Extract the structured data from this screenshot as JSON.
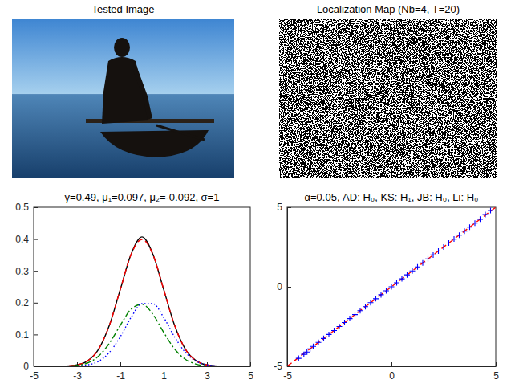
{
  "chart_data": [
    {
      "type": "image",
      "title": "Tested Image"
    },
    {
      "type": "image",
      "title": "Localization Map (Nb=4, T=20)"
    },
    {
      "type": "line",
      "title": "γ=0.49, μ₁=0.097, μ₂=-0.092, σ=1",
      "x": [
        -5,
        -4.5,
        -4,
        -3.5,
        -3,
        -2.5,
        -2,
        -1.5,
        -1,
        -0.5,
        0,
        0.5,
        1,
        1.5,
        2,
        2.5,
        3,
        3.5,
        4,
        4.5,
        5
      ],
      "series": [
        {
          "color": "#000000",
          "line_style": "solid",
          "values": [
            0,
            0,
            0.0001,
            0.0009,
            0.0044,
            0.0175,
            0.054,
            0.13,
            0.242,
            0.353,
            0.407,
            0.353,
            0.242,
            0.13,
            0.054,
            0.0175,
            0.0044,
            0.0009,
            0.0001,
            0,
            0
          ]
        },
        {
          "color": "#ff0000",
          "line_style": "dashed",
          "values": [
            0,
            0,
            0.0001,
            0.0009,
            0.0044,
            0.0175,
            0.054,
            0.13,
            0.242,
            0.352,
            0.399,
            0.352,
            0.242,
            0.13,
            0.054,
            0.0175,
            0.0044,
            0.0009,
            0.0001,
            0,
            0
          ]
        },
        {
          "color": "#008000",
          "line_style": "dash-dot",
          "values": [
            0,
            0,
            0.0001,
            0.0006,
            0.0028,
            0.0107,
            0.032,
            0.073,
            0.129,
            0.18,
            0.195,
            0.164,
            0.107,
            0.055,
            0.022,
            0.0068,
            0.0016,
            0.0003,
            0,
            0,
            0
          ]
        },
        {
          "color": "#0000ff",
          "line_style": "dotted",
          "values": [
            0,
            0,
            0,
            0.0002,
            0.001,
            0.0046,
            0.016,
            0.044,
            0.093,
            0.154,
            0.197,
            0.197,
            0.154,
            0.093,
            0.044,
            0.016,
            0.0046,
            0.001,
            0.0002,
            0,
            0
          ]
        }
      ],
      "xlim": [
        -5,
        5
      ],
      "ylim": [
        0,
        0.5
      ],
      "xticks": [
        -5,
        -3,
        -1,
        1,
        3,
        5
      ],
      "yticks": [
        0,
        0.1,
        0.2,
        0.3,
        0.4,
        0.5
      ]
    },
    {
      "type": "scatter",
      "title": "α=0.05, AD: H₀, KS: H₁, JB: H₀, Li: H₀",
      "series": [
        {
          "type": "line",
          "line_style": "dashed",
          "color": "#ff0000",
          "x": [
            -5,
            5
          ],
          "values": [
            -5,
            5
          ]
        },
        {
          "type": "scatter",
          "marker": "+",
          "color": "#0000ff",
          "x": [
            -4.45,
            -4.2,
            -4.05,
            -3.9,
            -3.75,
            -3.5,
            -3.25,
            -3,
            -2.75,
            -2.5,
            -2.25,
            -2,
            -1.75,
            -1.5,
            -1.25,
            -1,
            -0.75,
            -0.5,
            -0.25,
            0,
            0.25,
            0.5,
            0.75,
            1,
            1.25,
            1.5,
            1.75,
            2,
            2.25,
            2.5,
            2.75,
            3,
            3.25,
            3.5,
            3.75,
            4,
            4.25,
            4.5,
            4.75
          ],
          "values": [
            -4.5,
            -4.25,
            -4.1,
            -3.9,
            -3.75,
            -3.5,
            -3.25,
            -3,
            -2.75,
            -2.5,
            -2.25,
            -2,
            -1.75,
            -1.5,
            -1.25,
            -1,
            -0.75,
            -0.5,
            -0.25,
            0,
            0.25,
            0.5,
            0.75,
            1,
            1.25,
            1.5,
            1.75,
            2,
            2.25,
            2.5,
            2.75,
            3,
            3.25,
            3.5,
            3.75,
            4,
            4.25,
            4.55,
            4.8
          ]
        }
      ],
      "xlim": [
        -5,
        5
      ],
      "ylim": [
        -5,
        5
      ],
      "xticks": [
        -5,
        0,
        5
      ],
      "yticks": [
        -5,
        0,
        5
      ]
    }
  ]
}
